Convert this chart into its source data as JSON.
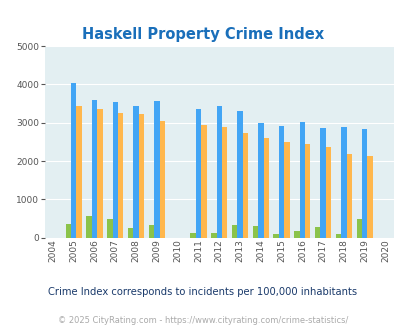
{
  "title": "Haskell Property Crime Index",
  "years": [
    2004,
    2005,
    2006,
    2007,
    2008,
    2009,
    2010,
    2011,
    2012,
    2013,
    2014,
    2015,
    2016,
    2017,
    2018,
    2019,
    2020
  ],
  "haskell": [
    0,
    350,
    560,
    490,
    250,
    330,
    0,
    110,
    110,
    330,
    290,
    100,
    170,
    280,
    90,
    490,
    0
  ],
  "oklahoma": [
    0,
    4050,
    3600,
    3550,
    3450,
    3580,
    0,
    3350,
    3430,
    3300,
    3000,
    2920,
    3010,
    2870,
    2880,
    2830,
    0
  ],
  "national": [
    0,
    3450,
    3350,
    3250,
    3220,
    3050,
    0,
    2940,
    2880,
    2730,
    2600,
    2490,
    2450,
    2360,
    2180,
    2130,
    0
  ],
  "haskell_color": "#8bc34a",
  "oklahoma_color": "#42a5f5",
  "national_color": "#ffb74d",
  "bg_color": "#e3eff2",
  "ylim": [
    0,
    5000
  ],
  "yticks": [
    0,
    1000,
    2000,
    3000,
    4000,
    5000
  ],
  "bar_width": 0.26,
  "subtitle": "Crime Index corresponds to incidents per 100,000 inhabitants",
  "footer": "© 2025 CityRating.com - https://www.cityrating.com/crime-statistics/",
  "title_color": "#1a6fba",
  "subtitle_color": "#1a3a6b",
  "footer_color": "#aaaaaa"
}
